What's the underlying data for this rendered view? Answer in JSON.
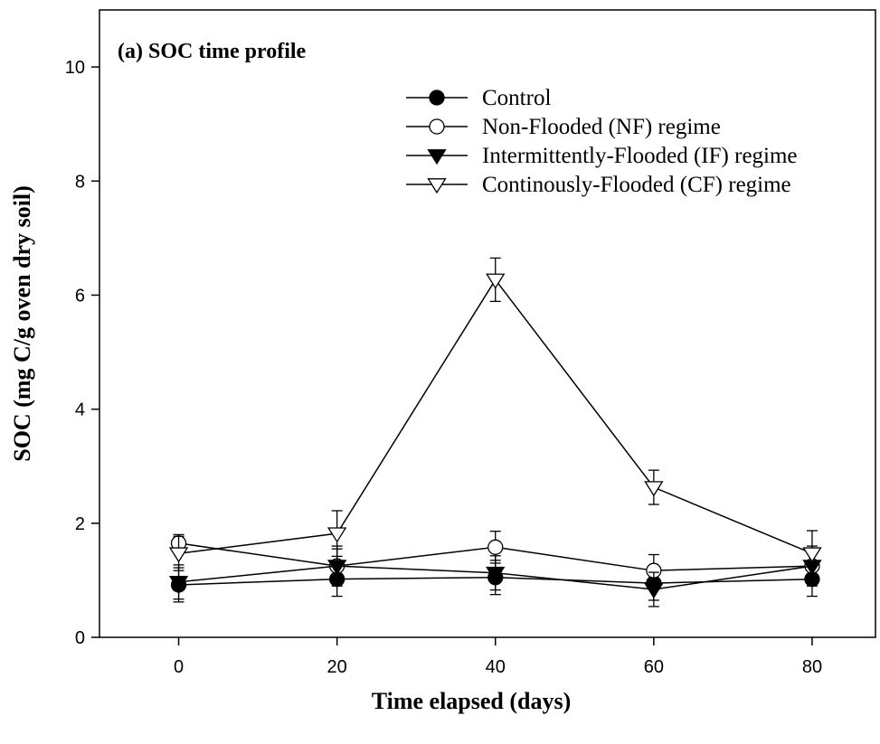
{
  "chart_data": {
    "type": "line",
    "title": "(a) SOC  time profile",
    "xlabel": "Time elapsed (days)",
    "ylabel": "SOC (mg C/g oven dry soil)",
    "xlim": [
      -10,
      88
    ],
    "ylim": [
      0,
      11
    ],
    "xticks": [
      0,
      20,
      40,
      60,
      80
    ],
    "yticks": [
      0,
      2,
      4,
      6,
      8,
      10
    ],
    "grid": false,
    "legend_position": "top-right",
    "x": [
      0,
      20,
      40,
      60,
      80
    ],
    "series": [
      {
        "name": "Control",
        "marker": "filled-circle",
        "values": [
          0.92,
          1.02,
          1.05,
          0.95,
          1.02
        ],
        "errors": [
          0.3,
          0.3,
          0.3,
          0.3,
          0.3
        ]
      },
      {
        "name": "Non-Flooded (NF) regime",
        "marker": "open-circle",
        "values": [
          1.65,
          1.25,
          1.58,
          1.17,
          1.25
        ],
        "errors": [
          0.15,
          0.35,
          0.28,
          0.28,
          0.35
        ]
      },
      {
        "name": "Intermittently-Flooded (IF) regime",
        "marker": "filled-triangle-down",
        "values": [
          0.97,
          1.25,
          1.13,
          0.84,
          1.25
        ],
        "errors": [
          0.3,
          0.3,
          0.3,
          0.3,
          0.3
        ]
      },
      {
        "name": "Continously-Flooded (CF) regime",
        "marker": "open-triangle-down",
        "values": [
          1.47,
          1.82,
          6.27,
          2.63,
          1.47
        ],
        "errors": [
          0.3,
          0.4,
          0.38,
          0.3,
          0.4
        ]
      }
    ]
  }
}
